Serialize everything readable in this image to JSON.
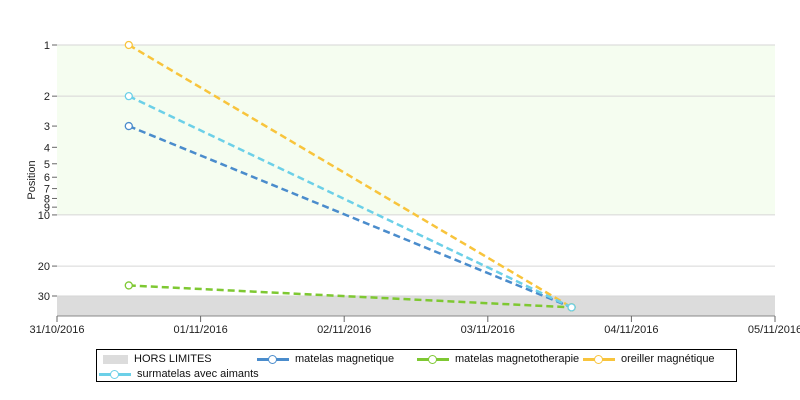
{
  "chart_data": {
    "type": "line",
    "ylabel": "Position",
    "x_ticks": [
      "31/10/2016",
      "01/11/2016",
      "02/11/2016",
      "03/11/2016",
      "04/11/2016",
      "05/11/2016"
    ],
    "xlim": [
      "2016-10-31T00:00",
      "2016-11-05T00:00"
    ],
    "y_scale": "log",
    "y_ticks": [
      "1",
      "2",
      "3",
      "4",
      "5",
      "6",
      "7",
      "8",
      "9",
      "10",
      "20",
      "30"
    ],
    "ylim": [
      1,
      40
    ],
    "y_inverted": true,
    "bands": [
      {
        "name": "",
        "from": 1,
        "to": 10,
        "color": "#f5fdf0"
      },
      {
        "name": "HORS LIMITES",
        "from": 30,
        "to": 40,
        "color": "#dcdcdc"
      }
    ],
    "series": [
      {
        "name": "matelas magnetique",
        "color": "#4a8ccc",
        "points": [
          {
            "x": "2016-10-31T12:00",
            "y": 3
          },
          {
            "x": "2016-11-03T14:00",
            "y": 35
          }
        ]
      },
      {
        "name": "matelas magnetotherapie",
        "color": "#7ec832",
        "points": [
          {
            "x": "2016-10-31T12:00",
            "y": 26
          },
          {
            "x": "2016-11-03T14:00",
            "y": 35
          }
        ]
      },
      {
        "name": "oreiller magnétique",
        "color": "#f8c43c",
        "points": [
          {
            "x": "2016-10-31T12:00",
            "y": 1
          },
          {
            "x": "2016-11-03T14:00",
            "y": 35
          }
        ]
      },
      {
        "name": "surmatelas avec aimants",
        "color": "#6cd0e8",
        "points": [
          {
            "x": "2016-10-31T12:00",
            "y": 2
          },
          {
            "x": "2016-11-03T14:00",
            "y": 35
          }
        ]
      }
    ],
    "legend_position": "bottom"
  }
}
